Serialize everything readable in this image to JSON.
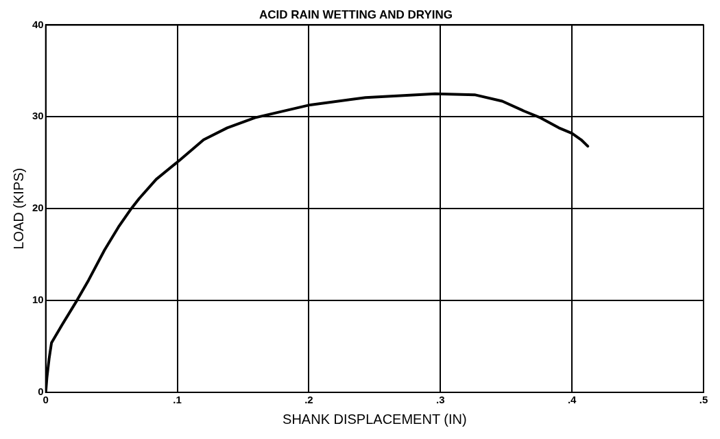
{
  "chart_data": {
    "type": "line",
    "title": "ACID RAIN WETTING AND DRYING",
    "xlabel": "SHANK DISPLACEMENT (IN)",
    "ylabel": "LOAD (KIPS)",
    "xlim": [
      0,
      0.5
    ],
    "xticks": [
      {
        "value": 0,
        "label": "0"
      },
      {
        "value": 0.1,
        "label": ".1"
      },
      {
        "value": 0.2,
        "label": ".2"
      },
      {
        "value": 0.3,
        "label": ".3"
      },
      {
        "value": 0.4,
        "label": ".4"
      },
      {
        "value": 0.5,
        "label": ".5"
      }
    ],
    "ylim": [
      0,
      40
    ],
    "yticks": [
      0,
      10,
      20,
      30,
      40
    ],
    "grid": true,
    "legend": false,
    "marker": "none",
    "line_style": "solid",
    "series": [
      {
        "color": "#000000",
        "x": [
          0,
          0.0009,
          0.0026,
          0.0044,
          0.0126,
          0.0237,
          0.0325,
          0.0447,
          0.0553,
          0.065,
          0.071,
          0.084,
          0.102,
          0.12,
          0.138,
          0.159,
          0.201,
          0.243,
          0.296,
          0.326,
          0.347,
          0.364,
          0.376,
          0.39,
          0.4,
          0.407,
          0.412
        ],
        "values": [
          0,
          1.6,
          3.7,
          5.4,
          7.4,
          10,
          12.2,
          15.5,
          18,
          20,
          21.1,
          23.2,
          25.3,
          27.5,
          28.8,
          29.9,
          31.3,
          32.1,
          32.5,
          32.4,
          31.7,
          30.6,
          29.9,
          28.8,
          28.2,
          27.5,
          26.8
        ]
      }
    ]
  }
}
